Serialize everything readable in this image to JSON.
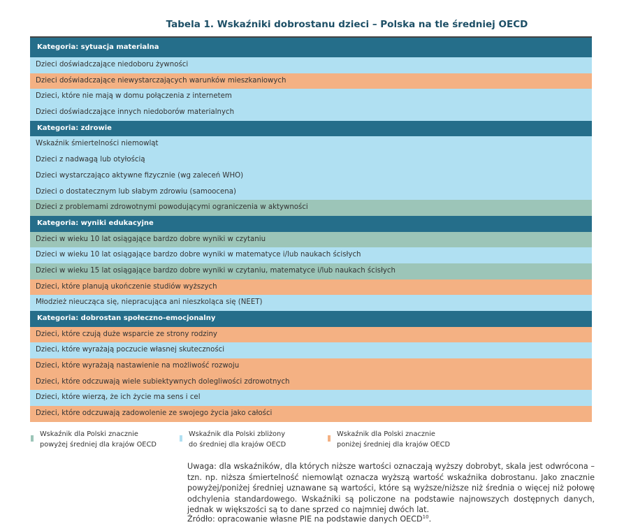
{
  "title": "Tabela 1.  Wskaźniki dobrostanu dzieci – Polska na tle średniej OECD",
  "colors": {
    "header": "#256e8a",
    "above": "#9cc5b8",
    "near": "#b0e0f2",
    "below": "#f4b183"
  },
  "categories": [
    {
      "label": "Kategoria: sytuacja materialna",
      "rows": [
        {
          "text": "Dzieci doświadczające niedoboru żywności",
          "status": "near"
        },
        {
          "text": "Dzieci doświadczające niewystarczających warunków mieszkaniowych",
          "status": "below"
        },
        {
          "text": "Dzieci, które nie mają w domu połączenia z internetem",
          "status": "near"
        },
        {
          "text": "Dzieci doświadczające innych niedoborów materialnych",
          "status": "near"
        }
      ]
    },
    {
      "label": "Kategoria: zdrowie",
      "rows": [
        {
          "text": "Wskaźnik śmiertelności niemowląt",
          "status": "near"
        },
        {
          "text": "Dzieci z nadwagą lub otyłością",
          "status": "near"
        },
        {
          "text": "Dzieci wystarczająco aktywne fizycznie (wg zaleceń WHO)",
          "status": "near"
        },
        {
          "text": "Dzieci o dostatecznym lub słabym zdrowiu (samoocena)",
          "status": "near"
        },
        {
          "text": "Dzieci z problemami zdrowotnymi powodującymi ograniczenia w aktywności",
          "status": "above"
        }
      ]
    },
    {
      "label": "Kategoria: wyniki edukacyjne",
      "rows": [
        {
          "text": "Dzieci w wieku 10 lat osiągające bardzo dobre wyniki w czytaniu",
          "status": "above"
        },
        {
          "text": "Dzieci w wieku 10 lat osiągające bardzo dobre wyniki w matematyce i/lub naukach ścisłych",
          "status": "near"
        },
        {
          "text": "Dzieci w wieku 15 lat osiągające bardzo dobre wyniki w czytaniu, matematyce i/lub naukach ścisłych",
          "status": "above"
        },
        {
          "text": "Dzieci, które planują ukończenie studiów wyższych",
          "status": "below"
        },
        {
          "text": "Młodzież nieucząca się, niepracująca ani nieszkoląca się (NEET)",
          "status": "near"
        }
      ]
    },
    {
      "label": "Kategoria: dobrostan społeczno-emocjonalny",
      "rows": [
        {
          "text": "Dzieci, które czują duże wsparcie ze strony rodziny",
          "status": "below"
        },
        {
          "text": "Dzieci, które wyrażają poczucie własnej skuteczności",
          "status": "near"
        },
        {
          "text": "Dzieci, które wyrażają nastawienie na możliwość rozwoju",
          "status": "below"
        },
        {
          "text": "Dzieci, które odczuwają wiele subiektywnych dolegliwości zdrowotnych",
          "status": "below"
        },
        {
          "text": "Dzieci, które wierzą, że ich życie ma sens i cel",
          "status": "near"
        },
        {
          "text": "Dzieci, które odczuwają zadowolenie ze swojego życia jako całości",
          "status": "below"
        }
      ]
    }
  ],
  "legend": [
    {
      "line1": "Wskaźnik dla Polski znacznie",
      "line2": "powyżej średniej dla krajów OECD",
      "status": "above"
    },
    {
      "line1": "Wskaźnik dla Polski zbliżony",
      "line2": "do średniej dla krajów OECD",
      "status": "near"
    },
    {
      "line1": "Wskaźnik dla Polski znacznie",
      "line2": "poniżej średniej dla krajów OECD",
      "status": "below"
    }
  ],
  "note": "Uwaga: dla wskaźników, dla których niższe wartości oznaczają wyższy dobrobyt, skala jest odwrócona – tzn. np. niższa śmiertelność niemowląt oznacza wyższą wartość wskaźnika dobrostanu. Jako znacznie powyżej/poniżej średniej uznawane są wartości, które są wyższe/niższe niż średnia o więcej niż połowę odchylenia standardowego. Wskaźniki są policzone na podstawie najnowszych dostępnych danych, jednak w większości są to dane sprzed co najmniej dwóch lat.",
  "source": "Źródło: opracowanie własne PIE na podstawie danych OECD",
  "source_ref": "10"
}
